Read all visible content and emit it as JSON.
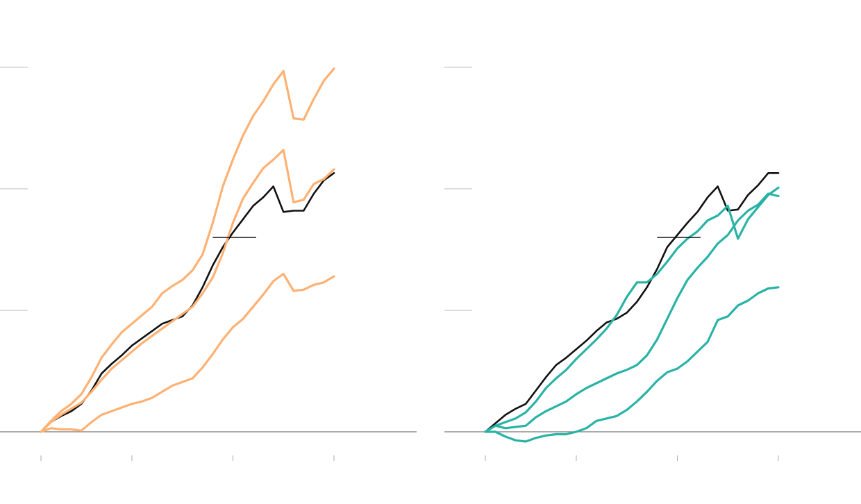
{
  "colors": {
    "baseline": "#777777",
    "gridline": "#bbbbbb",
    "tick": "#aaaaaa",
    "reference_series": "#111111",
    "left_panel_series": "#fdb173",
    "right_panel_series": "#29b3a6",
    "annotation_line": "#111111"
  },
  "chart_data": [
    {
      "type": "line",
      "xlim": [
        0,
        37
      ],
      "ylim": [
        0,
        3
      ],
      "x_ticks": [
        0,
        9,
        19,
        29
      ],
      "y_gridlines": [
        1,
        2,
        3
      ],
      "grid": true,
      "legend": "none",
      "annotation_marker": {
        "x": [
          17,
          21.3
        ],
        "y": 1.6
      },
      "series": [
        {
          "color": "#111111",
          "x": [
            0,
            1,
            2,
            3,
            4,
            5,
            6,
            7,
            8,
            9,
            10,
            11,
            12,
            13,
            14,
            15,
            16,
            17,
            18,
            19,
            20,
            21,
            22,
            23,
            24,
            25,
            26,
            27,
            28,
            29
          ],
          "y": [
            0.0,
            0.08,
            0.13,
            0.17,
            0.23,
            0.34,
            0.48,
            0.56,
            0.63,
            0.71,
            0.77,
            0.83,
            0.89,
            0.92,
            0.95,
            1.04,
            1.19,
            1.37,
            1.52,
            1.64,
            1.75,
            1.86,
            1.93,
            2.02,
            1.81,
            1.82,
            1.82,
            1.96,
            2.07,
            2.13
          ]
        },
        {
          "color": "#fdb173",
          "x": [
            0,
            1,
            2,
            3,
            4,
            5,
            6,
            7,
            8,
            9,
            10,
            11,
            12,
            13,
            14,
            15,
            16,
            17,
            18,
            19,
            20,
            21,
            22,
            23,
            24,
            25,
            26,
            27,
            28,
            29
          ],
          "y": [
            0.0,
            0.08,
            0.14,
            0.19,
            0.24,
            0.33,
            0.43,
            0.52,
            0.59,
            0.66,
            0.73,
            0.79,
            0.85,
            0.91,
            0.97,
            1.03,
            1.14,
            1.27,
            1.47,
            1.72,
            1.92,
            2.05,
            2.17,
            2.24,
            2.32,
            1.89,
            1.91,
            2.04,
            2.08,
            2.16
          ]
        },
        {
          "color": "#fdb173",
          "x": [
            0,
            1,
            2,
            3,
            4,
            5,
            6,
            7,
            8,
            9,
            10,
            11,
            12,
            13,
            14,
            15,
            16,
            17,
            18,
            19,
            20,
            21,
            22,
            23,
            24,
            25,
            26,
            27,
            28,
            29
          ],
          "y": [
            0.0,
            0.03,
            0.02,
            0.02,
            0.01,
            0.08,
            0.14,
            0.17,
            0.2,
            0.23,
            0.25,
            0.28,
            0.33,
            0.38,
            0.41,
            0.44,
            0.53,
            0.64,
            0.76,
            0.86,
            0.93,
            1.03,
            1.13,
            1.24,
            1.3,
            1.16,
            1.17,
            1.21,
            1.23,
            1.28
          ]
        },
        {
          "color": "#fdb173",
          "x": [
            0,
            1,
            2,
            3,
            4,
            5,
            6,
            7,
            8,
            9,
            10,
            11,
            12,
            13,
            14,
            15,
            16,
            17,
            18,
            19,
            20,
            21,
            22,
            23,
            24,
            25,
            26,
            27,
            28,
            29
          ],
          "y": [
            0.0,
            0.09,
            0.17,
            0.23,
            0.31,
            0.45,
            0.61,
            0.72,
            0.82,
            0.89,
            0.96,
            1.03,
            1.14,
            1.2,
            1.25,
            1.33,
            1.46,
            1.72,
            2.02,
            2.24,
            2.44,
            2.6,
            2.72,
            2.86,
            2.97,
            2.58,
            2.57,
            2.74,
            2.89,
            2.99
          ]
        }
      ]
    },
    {
      "type": "line",
      "xlim": [
        0,
        37
      ],
      "ylim": [
        0,
        3
      ],
      "x_ticks": [
        0,
        9,
        19,
        29
      ],
      "y_gridlines": [
        1,
        2,
        3
      ],
      "grid": true,
      "legend": "none",
      "annotation_marker": {
        "x": [
          17,
          21.3
        ],
        "y": 1.6
      },
      "series": [
        {
          "color": "#111111",
          "x": [
            0,
            1,
            2,
            3,
            4,
            5,
            6,
            7,
            8,
            9,
            10,
            11,
            12,
            13,
            14,
            15,
            16,
            17,
            18,
            19,
            20,
            21,
            22,
            23,
            24,
            25,
            26,
            27,
            28,
            29
          ],
          "y": [
            0.0,
            0.07,
            0.14,
            0.19,
            0.23,
            0.34,
            0.45,
            0.55,
            0.61,
            0.68,
            0.75,
            0.83,
            0.9,
            0.93,
            0.98,
            1.07,
            1.19,
            1.34,
            1.52,
            1.62,
            1.72,
            1.81,
            1.93,
            2.02,
            1.82,
            1.83,
            1.95,
            2.03,
            2.13,
            2.13
          ]
        },
        {
          "color": "#29b3a6",
          "x": [
            0,
            1,
            2,
            3,
            4,
            5,
            6,
            7,
            8,
            9,
            10,
            11,
            12,
            13,
            14,
            15,
            16,
            17,
            18,
            19,
            20,
            21,
            22,
            23,
            24,
            25,
            26,
            27,
            28,
            29
          ],
          "y": [
            0.0,
            0.05,
            0.08,
            0.11,
            0.16,
            0.25,
            0.36,
            0.44,
            0.51,
            0.6,
            0.68,
            0.76,
            0.85,
            0.96,
            1.11,
            1.23,
            1.23,
            1.3,
            1.4,
            1.51,
            1.59,
            1.65,
            1.74,
            1.78,
            1.86,
            1.59,
            1.75,
            1.85,
            1.95,
            2.01
          ]
        },
        {
          "color": "#29b3a6",
          "x": [
            0,
            1,
            2,
            3,
            4,
            5,
            6,
            7,
            8,
            9,
            10,
            11,
            12,
            13,
            14,
            15,
            16,
            17,
            18,
            19,
            20,
            21,
            22,
            23,
            24,
            25,
            26,
            27,
            28,
            29
          ],
          "y": [
            0.0,
            0.05,
            0.03,
            0.04,
            0.05,
            0.12,
            0.17,
            0.21,
            0.25,
            0.31,
            0.36,
            0.4,
            0.44,
            0.48,
            0.51,
            0.55,
            0.63,
            0.76,
            0.93,
            1.1,
            1.25,
            1.35,
            1.44,
            1.55,
            1.62,
            1.74,
            1.82,
            1.87,
            1.96,
            1.94
          ]
        },
        {
          "color": "#29b3a6",
          "x": [
            0,
            1,
            2,
            3,
            4,
            5,
            6,
            7,
            8,
            9,
            10,
            11,
            12,
            13,
            14,
            15,
            16,
            17,
            18,
            19,
            20,
            21,
            22,
            23,
            24,
            25,
            26,
            27,
            28,
            29
          ],
          "y": [
            0.0,
            0.0,
            -0.04,
            -0.07,
            -0.08,
            -0.05,
            -0.03,
            -0.02,
            -0.02,
            0.0,
            0.03,
            0.09,
            0.11,
            0.13,
            0.18,
            0.25,
            0.33,
            0.42,
            0.49,
            0.52,
            0.58,
            0.66,
            0.74,
            0.92,
            0.95,
            1.04,
            1.08,
            1.14,
            1.18,
            1.19
          ]
        }
      ]
    }
  ]
}
